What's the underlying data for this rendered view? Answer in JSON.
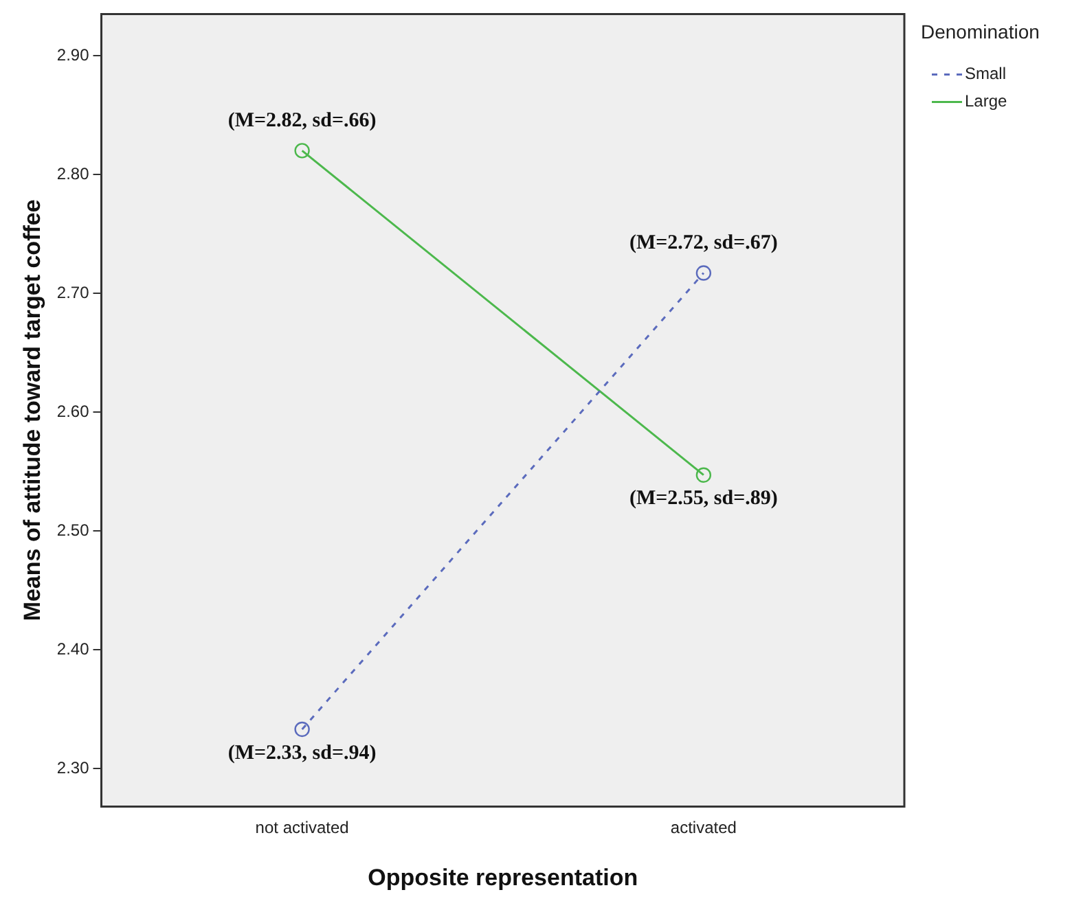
{
  "chart_data": {
    "type": "line",
    "xlabel": "Opposite representation",
    "ylabel": "Means of attitude toward target coffee",
    "legend_title": "Denomination",
    "categories": [
      "not activated",
      "activated"
    ],
    "series": [
      {
        "name": "Small",
        "color": "#5b6bbd",
        "values": [
          2.333,
          2.717
        ],
        "line_style": "dashed"
      },
      {
        "name": "Large",
        "color": "#4cb84c",
        "values": [
          2.82,
          2.547
        ],
        "line_style": "solid"
      }
    ],
    "ylim": [
      2.268,
      2.935
    ],
    "yticks": [
      {
        "value": 2.3,
        "label": "2.30"
      },
      {
        "value": 2.4,
        "label": "2.40"
      },
      {
        "value": 2.5,
        "label": "2.50"
      },
      {
        "value": 2.6,
        "label": "2.60"
      },
      {
        "value": 2.7,
        "label": "2.70"
      },
      {
        "value": 2.8,
        "label": "2.80"
      },
      {
        "value": 2.9,
        "label": "2.90"
      }
    ],
    "grid": false,
    "legend": "top right",
    "marker": "circle",
    "annotations": [
      {
        "text": "(M=2.82, sd=.66)",
        "x": "not activated",
        "y": 2.82
      },
      {
        "text": "(M=2.72, sd=.67)",
        "x": "activated",
        "y": 2.717
      },
      {
        "text": "(M=2.55, sd=.89)",
        "x": "activated",
        "y": 2.547
      },
      {
        "text": "(M=2.33, sd=.94)",
        "x": "not activated",
        "y": 2.333
      }
    ]
  }
}
